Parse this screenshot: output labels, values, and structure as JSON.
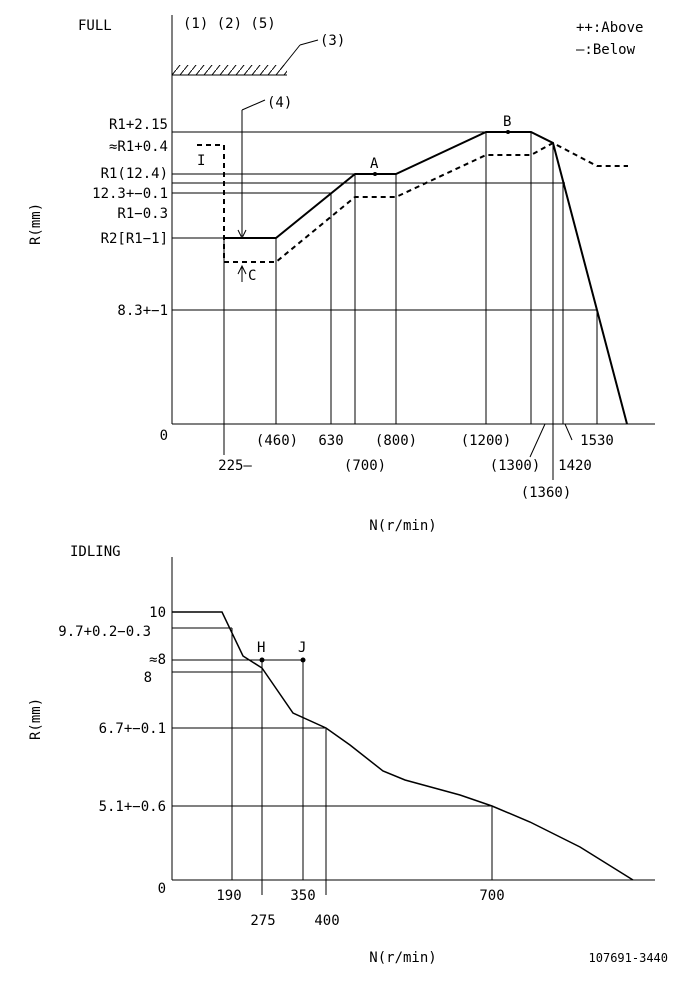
{
  "full": {
    "title": "FULL",
    "notes": [
      "(1) (2) (5)",
      "(3)",
      "(4)"
    ],
    "legend": [
      "++:Above",
      "—:Below"
    ],
    "y_labels": [
      "R1+2.15",
      "≈R1+0.4",
      "R1(12.4)",
      "12.3+−0.1",
      "R1−0.3",
      "R2[R1−1]",
      "8.3+−1",
      "0"
    ],
    "points": [
      "I",
      "A",
      "B",
      "C"
    ],
    "y_axis": "R(mm)",
    "x_labels": [
      "(460)",
      "630",
      "(800)",
      "(1200)",
      "1530",
      "225—",
      "(700)",
      "(1300)",
      "1420",
      "(1360)"
    ],
    "x_axis": "N(r/min)"
  },
  "idling": {
    "title": "IDLING",
    "y_labels": [
      "10",
      "9.7+0.2−0.3",
      "≈8",
      "8",
      "6.7+−0.1",
      "5.1+−0.6",
      "0"
    ],
    "points": [
      "H",
      "J"
    ],
    "y_axis": "R(mm)",
    "x_labels": [
      "190",
      "350",
      "700",
      "275",
      "400"
    ],
    "x_axis": "N(r/min)"
  },
  "code": "107691-3440"
}
